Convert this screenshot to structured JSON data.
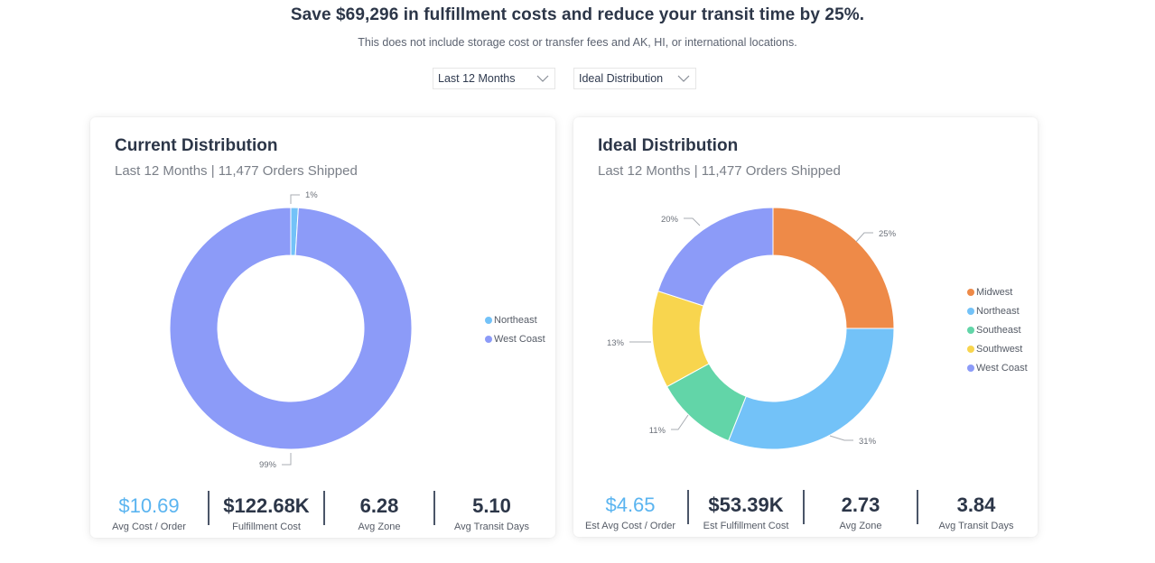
{
  "header": {
    "headline": "Save $69,296 in fulfillment costs and reduce your transit time by 25%.",
    "disclaimer": "This does not include storage cost or transfer fees and AK, HI, or international locations."
  },
  "filters": {
    "period": {
      "value": "Last 12 Months",
      "icon": "chevron-down-icon"
    },
    "scenario": {
      "value": "Ideal Distribution",
      "icon": "chevron-down-icon"
    }
  },
  "current": {
    "title": "Current Distribution",
    "subtitle": "Last 12 Months | 11,477 Orders Shipped",
    "stats": [
      {
        "value": "$10.69",
        "label": "Avg Cost / Order",
        "accent": true
      },
      {
        "value": "$122.68K",
        "label": "Fulfillment Cost",
        "accent": false
      },
      {
        "value": "6.28",
        "label": "Avg Zone",
        "accent": false
      },
      {
        "value": "5.10",
        "label": "Avg Transit Days",
        "accent": false
      }
    ]
  },
  "ideal": {
    "title": "Ideal Distribution",
    "subtitle": "Last 12 Months | 11,477 Orders Shipped",
    "stats": [
      {
        "value": "$4.65",
        "label": "Est Avg Cost / Order",
        "accent": true
      },
      {
        "value": "$53.39K",
        "label": "Est Fulfillment Cost",
        "accent": false
      },
      {
        "value": "2.73",
        "label": "Avg Zone",
        "accent": false
      },
      {
        "value": "3.84",
        "label": "Avg Transit Days",
        "accent": false
      }
    ]
  },
  "colors": {
    "Midwest": "#ee8a48",
    "Northeast": "#73c2f8",
    "Southeast": "#62d5a8",
    "Southwest": "#f8d54e",
    "West Coast": "#8c9bf8",
    "accent": "#5ab4f0"
  },
  "chart_data": [
    {
      "type": "pie",
      "title": "Current Distribution",
      "donut": true,
      "categories": [
        "Northeast",
        "West Coast"
      ],
      "values": [
        1,
        99
      ],
      "labels": [
        "1%",
        "99%"
      ],
      "legend": {
        "entries": [
          "Northeast",
          "West Coast"
        ],
        "position": "right"
      }
    },
    {
      "type": "pie",
      "title": "Ideal Distribution",
      "donut": true,
      "categories": [
        "Midwest",
        "Northeast",
        "Southeast",
        "Southwest",
        "West Coast"
      ],
      "values": [
        25,
        31,
        11,
        13,
        20
      ],
      "labels": [
        "25%",
        "31%",
        "11%",
        "13%",
        "20%"
      ],
      "legend": {
        "entries": [
          "Midwest",
          "Northeast",
          "Southeast",
          "Southwest",
          "West Coast"
        ],
        "position": "right"
      }
    }
  ]
}
